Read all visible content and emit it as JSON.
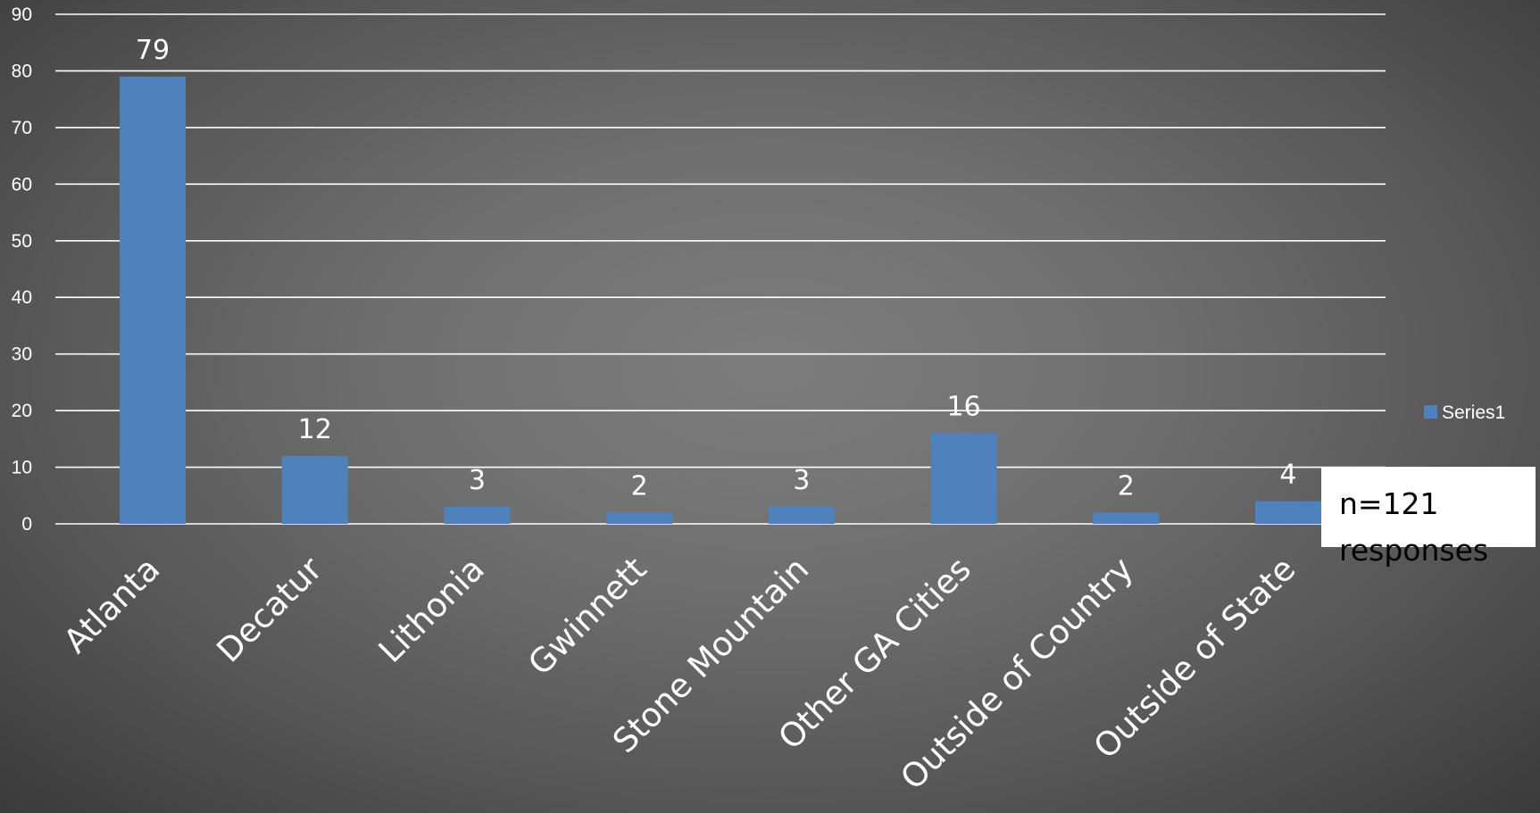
{
  "chart_data": {
    "type": "bar",
    "categories": [
      "Atlanta",
      "Decatur",
      "Lithonia",
      "Gwinnett",
      "Stone Mountain",
      "Other GA Cities",
      "Outside of Country",
      "Outside of State"
    ],
    "series": [
      {
        "name": "Series1",
        "values": [
          79,
          12,
          3,
          2,
          3,
          16,
          2,
          4
        ],
        "color": "#4f81bd"
      }
    ],
    "yticks": [
      0,
      10,
      20,
      30,
      40,
      50,
      60,
      70,
      80,
      90
    ],
    "ylim": [
      0,
      90
    ],
    "grid": true,
    "legend": {
      "position": "right",
      "label": "Series1"
    },
    "data_labels": true
  },
  "annotation": {
    "text": "n=121 responses"
  },
  "colors": {
    "bar": "#4f81bd",
    "gridline": "#ffffff",
    "text": "#ffffff",
    "annotation_bg": "#ffffff",
    "annotation_text": "#000000"
  }
}
